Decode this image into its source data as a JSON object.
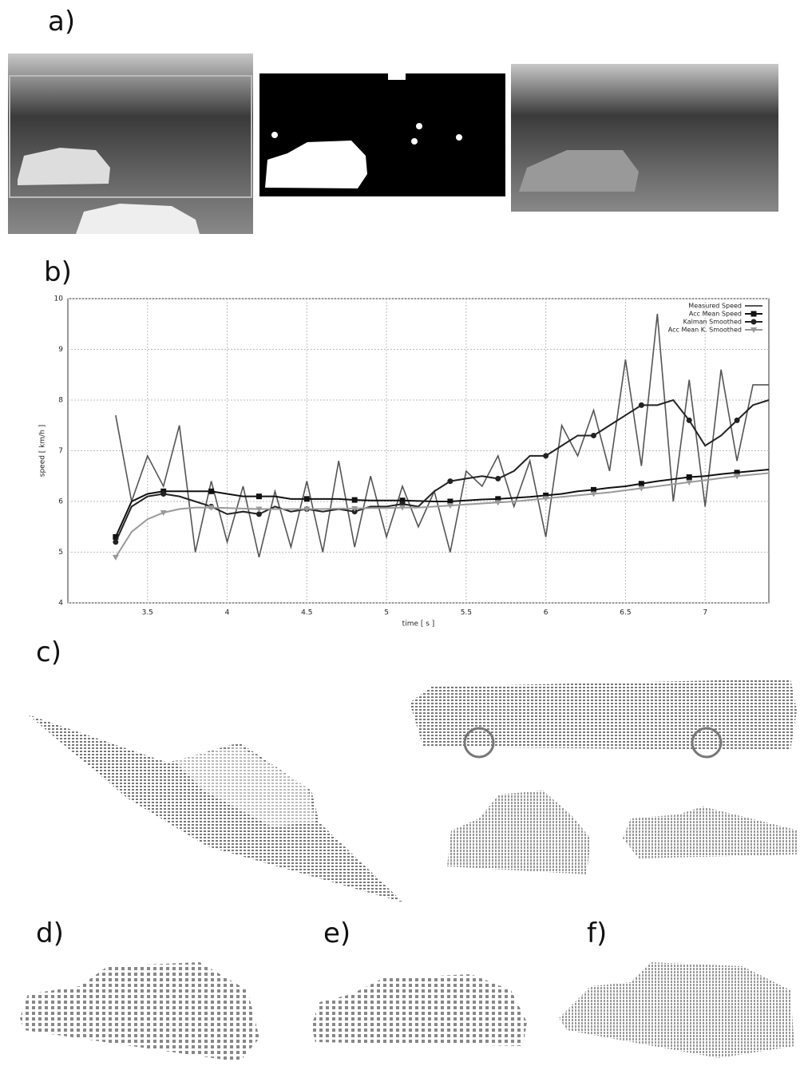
{
  "panel_labels": [
    "a)",
    "b)",
    "c)",
    "d)",
    "e)",
    "f)"
  ],
  "chart_data": {
    "type": "line",
    "x_label": "time [ s ]",
    "y_label": "speed [ km/h ]",
    "x": [
      3.3,
      3.4,
      3.5,
      3.6,
      3.7,
      3.8,
      3.9,
      4.0,
      4.1,
      4.2,
      4.3,
      4.4,
      4.5,
      4.6,
      4.7,
      4.8,
      4.9,
      5.0,
      5.1,
      5.2,
      5.3,
      5.4,
      5.5,
      5.6,
      5.7,
      5.8,
      5.9,
      6.0,
      6.1,
      6.2,
      6.3,
      6.4,
      6.5,
      6.6,
      6.7,
      6.8,
      6.9,
      7.0,
      7.1,
      7.2,
      7.3,
      7.4
    ],
    "series": [
      {
        "name": "Measured Speed",
        "color": "#555555",
        "marker": "none",
        "values": [
          7.7,
          6.0,
          6.9,
          6.3,
          7.5,
          5.0,
          6.4,
          5.2,
          6.3,
          4.9,
          6.2,
          5.1,
          6.4,
          5.0,
          6.8,
          5.1,
          6.5,
          5.3,
          6.3,
          5.5,
          6.2,
          5.0,
          6.6,
          6.3,
          6.9,
          5.9,
          6.8,
          5.3,
          7.5,
          6.9,
          7.8,
          6.6,
          8.8,
          6.7,
          9.7,
          6.0,
          8.4,
          5.9,
          8.6,
          6.8,
          8.3,
          8.3
        ]
      },
      {
        "name": "Acc Mean Speed",
        "color": "#111111",
        "marker": "square",
        "values": [
          5.3,
          6.0,
          6.15,
          6.2,
          6.2,
          6.2,
          6.2,
          6.15,
          6.1,
          6.1,
          6.1,
          6.05,
          6.05,
          6.05,
          6.05,
          6.03,
          6.02,
          6.02,
          6.02,
          6.01,
          6.0,
          6.0,
          6.02,
          6.04,
          6.05,
          6.07,
          6.09,
          6.12,
          6.15,
          6.2,
          6.23,
          6.27,
          6.3,
          6.35,
          6.4,
          6.44,
          6.48,
          6.5,
          6.54,
          6.57,
          6.6,
          6.63
        ]
      },
      {
        "name": "Kalman Smoothed",
        "color": "#222222",
        "marker": "circle",
        "values": [
          5.2,
          5.9,
          6.1,
          6.15,
          6.1,
          6.0,
          5.9,
          5.75,
          5.8,
          5.75,
          5.9,
          5.8,
          5.85,
          5.8,
          5.85,
          5.8,
          5.9,
          5.9,
          5.95,
          5.9,
          6.2,
          6.4,
          6.45,
          6.5,
          6.45,
          6.6,
          6.9,
          6.9,
          7.1,
          7.3,
          7.3,
          7.5,
          7.7,
          7.9,
          7.9,
          8.0,
          7.6,
          7.1,
          7.3,
          7.6,
          7.9,
          8.0
        ]
      },
      {
        "name": "Acc Mean K. Smoothed",
        "color": "#999999",
        "marker": "triangle",
        "values": [
          4.9,
          5.4,
          5.65,
          5.78,
          5.85,
          5.88,
          5.88,
          5.87,
          5.86,
          5.85,
          5.85,
          5.85,
          5.85,
          5.85,
          5.86,
          5.86,
          5.87,
          5.87,
          5.88,
          5.88,
          5.9,
          5.92,
          5.94,
          5.96,
          5.98,
          6.0,
          6.03,
          6.06,
          6.09,
          6.12,
          6.15,
          6.18,
          6.22,
          6.26,
          6.3,
          6.34,
          6.38,
          6.42,
          6.46,
          6.5,
          6.53,
          6.56
        ]
      }
    ],
    "xlim": [
      3,
      7.4
    ],
    "ylim": [
      4,
      10
    ],
    "xticks": [
      3.5,
      4,
      4.5,
      5,
      5.5,
      6,
      6.5,
      7
    ],
    "yticks": [
      4,
      5,
      6,
      7,
      8,
      9,
      10
    ],
    "grid": true,
    "legend": "upper right"
  }
}
